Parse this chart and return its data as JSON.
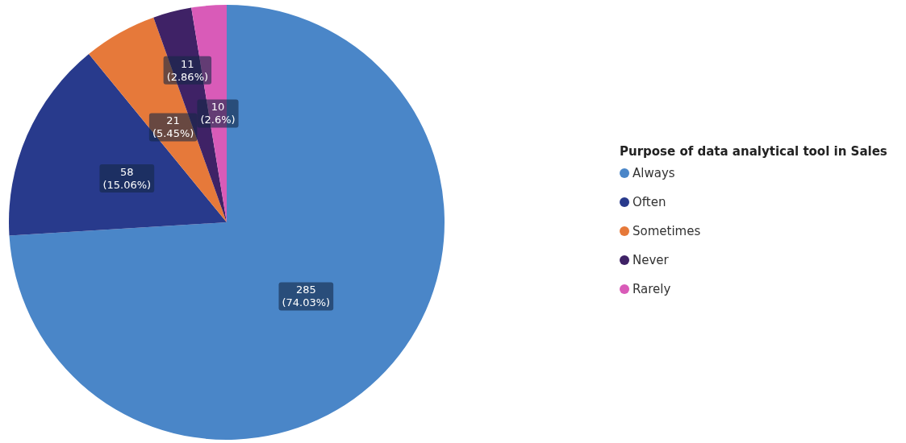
{
  "chart_data": {
    "type": "pie",
    "legend_title": "Purpose of data analytical tool in Sales",
    "categories": [
      "Always",
      "Often",
      "Sometimes",
      "Never",
      "Rarely"
    ],
    "values": [
      285,
      58,
      21,
      11,
      10
    ],
    "colors": [
      "#4a86c8",
      "#283a8c",
      "#e6793a",
      "#3f2266",
      "#d95bb8"
    ],
    "value_labels": [
      "285\n(74.03%)",
      "58\n(15.06%)",
      "21\n(5.45%)",
      "11\n(2.86%)",
      "10\n(2.6%)"
    ],
    "legend": "right"
  }
}
